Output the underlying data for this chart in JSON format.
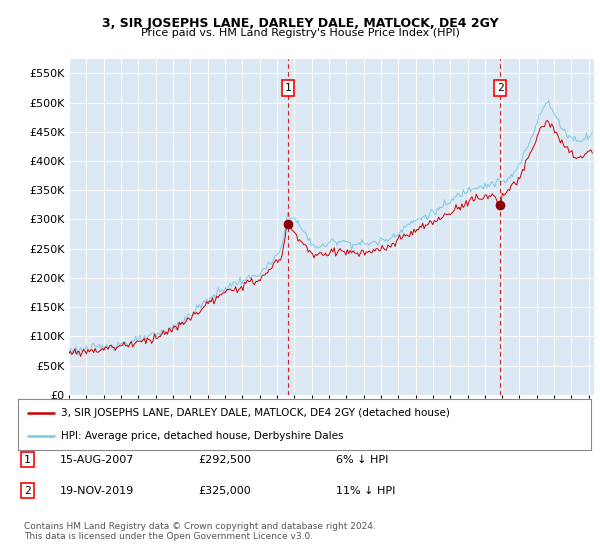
{
  "title": "3, SIR JOSEPHS LANE, DARLEY DALE, MATLOCK, DE4 2GY",
  "subtitle": "Price paid vs. HM Land Registry's House Price Index (HPI)",
  "ylim": [
    0,
    575000
  ],
  "yticks": [
    0,
    50000,
    100000,
    150000,
    200000,
    250000,
    300000,
    350000,
    400000,
    450000,
    500000,
    550000
  ],
  "background_color": "#ffffff",
  "plot_bg_color": "#dce9f5",
  "plot_bg_color_right": "#e8f2fb",
  "grid_color": "#ffffff",
  "sale1_date": 2007.62,
  "sale1_price": 292500,
  "sale1_label": "1",
  "sale2_date": 2019.88,
  "sale2_price": 325000,
  "sale2_label": "2",
  "legend_line1": "3, SIR JOSEPHS LANE, DARLEY DALE, MATLOCK, DE4 2GY (detached house)",
  "legend_line2": "HPI: Average price, detached house, Derbyshire Dales",
  "note1_label": "1",
  "note1_date": "15-AUG-2007",
  "note1_price": "£292,500",
  "note1_pct": "6% ↓ HPI",
  "note2_label": "2",
  "note2_date": "19-NOV-2019",
  "note2_price": "£325,000",
  "note2_pct": "11% ↓ HPI",
  "footer": "Contains HM Land Registry data © Crown copyright and database right 2024.\nThis data is licensed under the Open Government Licence v3.0.",
  "hpi_color": "#7ec8e3",
  "price_color": "#cc0000",
  "sale_marker_color": "#8b0000",
  "vline_color": "#cc2222",
  "xmin": 1995,
  "xmax": 2025.3
}
